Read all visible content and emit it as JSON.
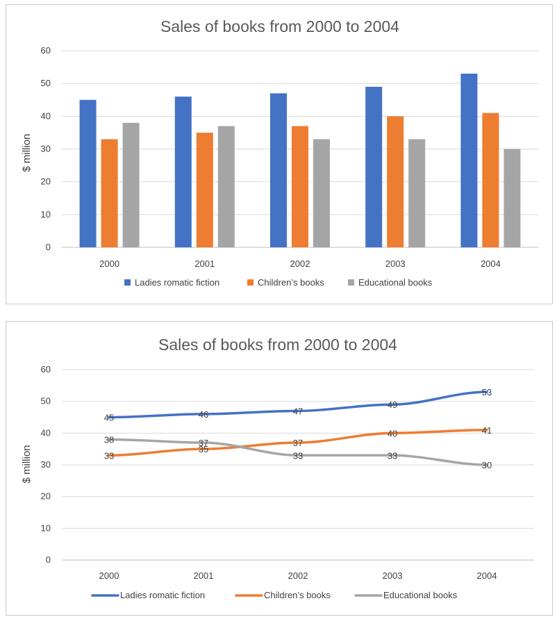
{
  "colors": {
    "series": [
      "#4472C4",
      "#ED7D31",
      "#A5A5A5"
    ],
    "grid": "#D9D9D9",
    "text": "#404040",
    "title": "#595959"
  },
  "chart_data": [
    {
      "type": "bar",
      "title": "Sales of books from 2000 to 2004",
      "xlabel": "",
      "ylabel": "$ million",
      "ylim": [
        0,
        60
      ],
      "yticks": [
        0,
        10,
        20,
        30,
        40,
        50,
        60
      ],
      "grid": true,
      "legend": "bottom",
      "categories": [
        "2000",
        "2001",
        "2002",
        "2003",
        "2004"
      ],
      "series": [
        {
          "name": "Ladies romatic fiction",
          "values": [
            45,
            46,
            47,
            49,
            53
          ]
        },
        {
          "name": "Children’s books",
          "values": [
            33,
            35,
            37,
            40,
            41
          ]
        },
        {
          "name": "Educational books",
          "values": [
            38,
            37,
            33,
            33,
            30
          ]
        }
      ]
    },
    {
      "type": "line",
      "title": "Sales of books from 2000 to 2004",
      "xlabel": "",
      "ylabel": "$ million",
      "ylim": [
        0,
        60
      ],
      "yticks": [
        0,
        10,
        20,
        30,
        40,
        50,
        60
      ],
      "grid": true,
      "legend": "bottom",
      "data_labels": true,
      "categories": [
        "2000",
        "2001",
        "2002",
        "2003",
        "2004"
      ],
      "series": [
        {
          "name": "Ladies romatic fiction",
          "values": [
            45,
            46,
            47,
            49,
            53
          ]
        },
        {
          "name": "Children’s books",
          "values": [
            33,
            35,
            37,
            40,
            41
          ]
        },
        {
          "name": "Educational books",
          "values": [
            38,
            37,
            33,
            33,
            30
          ]
        }
      ]
    }
  ]
}
